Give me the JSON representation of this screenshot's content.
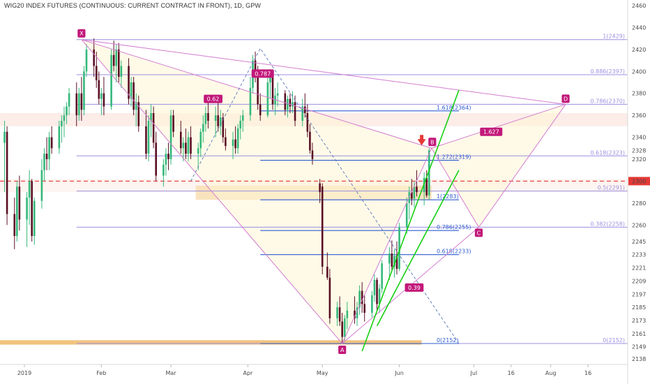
{
  "chart_data": {
    "type": "candlestick",
    "title": "WIG20 INDEX FUTURES (CONTINUOUS: CURRENT CONTRACT IN FRONT), 1D, GPW",
    "x_labels": [
      "2019",
      "Feb",
      "Mar",
      "Apr",
      "May",
      "Jun",
      "Jul",
      "16",
      "Aug",
      "16"
    ],
    "x_label_days": [
      0,
      31,
      59,
      90,
      120,
      151,
      181,
      196,
      212,
      227
    ],
    "y_ticks": [
      2138,
      2149,
      2161,
      2173,
      2185,
      2197,
      2209,
      2221,
      2233,
      2245,
      2260,
      2280,
      2300,
      2320,
      2340,
      2360,
      2380,
      2400,
      2420,
      2440,
      2460
    ],
    "ylim": [
      2131,
      2466
    ],
    "current_price": {
      "value": 2300,
      "label": "2300",
      "color": "#e53935"
    },
    "last_close": {
      "value": 2328,
      "label": "2328"
    },
    "candles": [
      {
        "d": -8,
        "o": 2335,
        "h": 2355,
        "l": 2290,
        "c": 2345
      },
      {
        "d": -7,
        "o": 2345,
        "h": 2350,
        "l": 2260,
        "c": 2270
      },
      {
        "d": -4,
        "o": 2270,
        "h": 2285,
        "l": 2238,
        "c": 2250
      },
      {
        "d": -3,
        "o": 2250,
        "h": 2300,
        "l": 2245,
        "c": 2295
      },
      {
        "d": -2,
        "o": 2295,
        "h": 2305,
        "l": 2255,
        "c": 2265
      },
      {
        "d": 1,
        "o": 2265,
        "h": 2290,
        "l": 2240,
        "c": 2285
      },
      {
        "d": 2,
        "o": 2285,
        "h": 2310,
        "l": 2260,
        "c": 2300
      },
      {
        "d": 3,
        "o": 2300,
        "h": 2302,
        "l": 2245,
        "c": 2250
      },
      {
        "d": 4,
        "o": 2250,
        "h": 2285,
        "l": 2242,
        "c": 2282
      },
      {
        "d": 7,
        "o": 2282,
        "h": 2320,
        "l": 2275,
        "c": 2310
      },
      {
        "d": 8,
        "o": 2310,
        "h": 2330,
        "l": 2300,
        "c": 2325
      },
      {
        "d": 9,
        "o": 2325,
        "h": 2340,
        "l": 2310,
        "c": 2320
      },
      {
        "d": 10,
        "o": 2320,
        "h": 2345,
        "l": 2310,
        "c": 2340
      },
      {
        "d": 11,
        "o": 2340,
        "h": 2350,
        "l": 2325,
        "c": 2330
      },
      {
        "d": 14,
        "o": 2330,
        "h": 2355,
        "l": 2325,
        "c": 2350
      },
      {
        "d": 15,
        "o": 2350,
        "h": 2360,
        "l": 2335,
        "c": 2355
      },
      {
        "d": 16,
        "o": 2355,
        "h": 2368,
        "l": 2340,
        "c": 2360
      },
      {
        "d": 17,
        "o": 2360,
        "h": 2372,
        "l": 2352,
        "c": 2368
      },
      {
        "d": 18,
        "o": 2368,
        "h": 2385,
        "l": 2360,
        "c": 2380
      },
      {
        "d": 21,
        "o": 2380,
        "h": 2390,
        "l": 2350,
        "c": 2360
      },
      {
        "d": 22,
        "o": 2360,
        "h": 2385,
        "l": 2355,
        "c": 2380
      },
      {
        "d": 23,
        "o": 2380,
        "h": 2395,
        "l": 2355,
        "c": 2365
      },
      {
        "d": 24,
        "o": 2365,
        "h": 2405,
        "l": 2360,
        "c": 2400
      },
      {
        "d": 25,
        "o": 2400,
        "h": 2425,
        "l": 2395,
        "c": 2420
      },
      {
        "d": 28,
        "o": 2420,
        "h": 2430,
        "l": 2395,
        "c": 2405
      },
      {
        "d": 29,
        "o": 2405,
        "h": 2418,
        "l": 2385,
        "c": 2392
      },
      {
        "d": 30,
        "o": 2392,
        "h": 2400,
        "l": 2370,
        "c": 2375
      },
      {
        "d": 31,
        "o": 2375,
        "h": 2385,
        "l": 2360,
        "c": 2380
      },
      {
        "d": 32,
        "o": 2380,
        "h": 2395,
        "l": 2360,
        "c": 2368
      },
      {
        "d": 35,
        "o": 2368,
        "h": 2420,
        "l": 2365,
        "c": 2415
      },
      {
        "d": 36,
        "o": 2415,
        "h": 2428,
        "l": 2400,
        "c": 2405
      },
      {
        "d": 37,
        "o": 2405,
        "h": 2425,
        "l": 2390,
        "c": 2420
      },
      {
        "d": 38,
        "o": 2420,
        "h": 2426,
        "l": 2390,
        "c": 2395
      },
      {
        "d": 39,
        "o": 2395,
        "h": 2410,
        "l": 2385,
        "c": 2405
      },
      {
        "d": 42,
        "o": 2405,
        "h": 2412,
        "l": 2370,
        "c": 2375
      },
      {
        "d": 43,
        "o": 2375,
        "h": 2395,
        "l": 2368,
        "c": 2390
      },
      {
        "d": 44,
        "o": 2390,
        "h": 2395,
        "l": 2360,
        "c": 2365
      },
      {
        "d": 45,
        "o": 2365,
        "h": 2380,
        "l": 2350,
        "c": 2372
      },
      {
        "d": 46,
        "o": 2372,
        "h": 2378,
        "l": 2345,
        "c": 2350
      },
      {
        "d": 49,
        "o": 2350,
        "h": 2365,
        "l": 2320,
        "c": 2325
      },
      {
        "d": 50,
        "o": 2325,
        "h": 2360,
        "l": 2318,
        "c": 2355
      },
      {
        "d": 51,
        "o": 2355,
        "h": 2370,
        "l": 2340,
        "c": 2362
      },
      {
        "d": 52,
        "o": 2362,
        "h": 2368,
        "l": 2330,
        "c": 2335
      },
      {
        "d": 53,
        "o": 2335,
        "h": 2345,
        "l": 2300,
        "c": 2305
      },
      {
        "d": 56,
        "o": 2305,
        "h": 2320,
        "l": 2295,
        "c": 2315
      },
      {
        "d": 57,
        "o": 2315,
        "h": 2330,
        "l": 2305,
        "c": 2325
      },
      {
        "d": 58,
        "o": 2325,
        "h": 2335,
        "l": 2310,
        "c": 2320
      },
      {
        "d": 59,
        "o": 2320,
        "h": 2365,
        "l": 2315,
        "c": 2360
      },
      {
        "d": 60,
        "o": 2360,
        "h": 2365,
        "l": 2340,
        "c": 2345
      },
      {
        "d": 63,
        "o": 2345,
        "h": 2355,
        "l": 2325,
        "c": 2330
      },
      {
        "d": 64,
        "o": 2330,
        "h": 2340,
        "l": 2318,
        "c": 2335
      },
      {
        "d": 65,
        "o": 2335,
        "h": 2348,
        "l": 2320,
        "c": 2325
      },
      {
        "d": 66,
        "o": 2325,
        "h": 2345,
        "l": 2318,
        "c": 2340
      },
      {
        "d": 67,
        "o": 2340,
        "h": 2350,
        "l": 2320,
        "c": 2325
      },
      {
        "d": 70,
        "o": 2325,
        "h": 2335,
        "l": 2310,
        "c": 2330
      },
      {
        "d": 71,
        "o": 2330,
        "h": 2348,
        "l": 2322,
        "c": 2345
      },
      {
        "d": 72,
        "o": 2345,
        "h": 2360,
        "l": 2335,
        "c": 2352
      },
      {
        "d": 73,
        "o": 2352,
        "h": 2368,
        "l": 2345,
        "c": 2362
      },
      {
        "d": 74,
        "o": 2362,
        "h": 2375,
        "l": 2348,
        "c": 2355
      },
      {
        "d": 77,
        "o": 2355,
        "h": 2368,
        "l": 2340,
        "c": 2360
      },
      {
        "d": 78,
        "o": 2360,
        "h": 2372,
        "l": 2345,
        "c": 2350
      },
      {
        "d": 79,
        "o": 2350,
        "h": 2365,
        "l": 2342,
        "c": 2358
      },
      {
        "d": 80,
        "o": 2358,
        "h": 2362,
        "l": 2335,
        "c": 2340
      },
      {
        "d": 81,
        "o": 2340,
        "h": 2348,
        "l": 2328,
        "c": 2332
      },
      {
        "d": 84,
        "o": 2332,
        "h": 2345,
        "l": 2320,
        "c": 2338
      },
      {
        "d": 85,
        "o": 2338,
        "h": 2350,
        "l": 2325,
        "c": 2330
      },
      {
        "d": 86,
        "o": 2330,
        "h": 2352,
        "l": 2325,
        "c": 2348
      },
      {
        "d": 87,
        "o": 2348,
        "h": 2360,
        "l": 2338,
        "c": 2355
      },
      {
        "d": 88,
        "o": 2355,
        "h": 2365,
        "l": 2345,
        "c": 2360
      },
      {
        "d": 91,
        "o": 2360,
        "h": 2395,
        "l": 2355,
        "c": 2385
      },
      {
        "d": 92,
        "o": 2385,
        "h": 2415,
        "l": 2380,
        "c": 2410
      },
      {
        "d": 93,
        "o": 2410,
        "h": 2418,
        "l": 2390,
        "c": 2400
      },
      {
        "d": 94,
        "o": 2400,
        "h": 2405,
        "l": 2365,
        "c": 2370
      },
      {
        "d": 95,
        "o": 2370,
        "h": 2380,
        "l": 2355,
        "c": 2360
      },
      {
        "d": 98,
        "o": 2360,
        "h": 2395,
        "l": 2358,
        "c": 2390
      },
      {
        "d": 99,
        "o": 2390,
        "h": 2402,
        "l": 2375,
        "c": 2398
      },
      {
        "d": 100,
        "o": 2398,
        "h": 2400,
        "l": 2365,
        "c": 2370
      },
      {
        "d": 101,
        "o": 2370,
        "h": 2385,
        "l": 2360,
        "c": 2378
      },
      {
        "d": 102,
        "o": 2378,
        "h": 2390,
        "l": 2368,
        "c": 2380
      },
      {
        "d": 105,
        "o": 2380,
        "h": 2383,
        "l": 2360,
        "c": 2365
      },
      {
        "d": 106,
        "o": 2365,
        "h": 2378,
        "l": 2358,
        "c": 2375
      },
      {
        "d": 107,
        "o": 2375,
        "h": 2380,
        "l": 2362,
        "c": 2368
      },
      {
        "d": 108,
        "o": 2368,
        "h": 2382,
        "l": 2362,
        "c": 2372
      },
      {
        "d": 109,
        "o": 2372,
        "h": 2378,
        "l": 2350,
        "c": 2355
      },
      {
        "d": 112,
        "o": 2355,
        "h": 2375,
        "l": 2350,
        "c": 2368
      },
      {
        "d": 113,
        "o": 2368,
        "h": 2380,
        "l": 2358,
        "c": 2362
      },
      {
        "d": 114,
        "o": 2362,
        "h": 2370,
        "l": 2340,
        "c": 2345
      },
      {
        "d": 115,
        "o": 2345,
        "h": 2352,
        "l": 2325,
        "c": 2328
      },
      {
        "d": 116,
        "o": 2328,
        "h": 2335,
        "l": 2315,
        "c": 2320
      },
      {
        "d": 119,
        "o": 2298,
        "h": 2302,
        "l": 2280,
        "c": 2290
      },
      {
        "d": 120,
        "o": 2295,
        "h": 2298,
        "l": 2215,
        "c": 2222
      },
      {
        "d": 122,
        "o": 2222,
        "h": 2235,
        "l": 2210,
        "c": 2212
      },
      {
        "d": 123,
        "o": 2212,
        "h": 2220,
        "l": 2170,
        "c": 2175
      },
      {
        "d": 126,
        "o": 2175,
        "h": 2190,
        "l": 2168,
        "c": 2185
      },
      {
        "d": 127,
        "o": 2185,
        "h": 2195,
        "l": 2168,
        "c": 2172
      },
      {
        "d": 128,
        "o": 2172,
        "h": 2180,
        "l": 2152,
        "c": 2158
      },
      {
        "d": 129,
        "o": 2158,
        "h": 2178,
        "l": 2155,
        "c": 2175
      },
      {
        "d": 130,
        "o": 2175,
        "h": 2190,
        "l": 2165,
        "c": 2182
      },
      {
        "d": 133,
        "o": 2182,
        "h": 2195,
        "l": 2170,
        "c": 2175
      },
      {
        "d": 134,
        "o": 2175,
        "h": 2190,
        "l": 2168,
        "c": 2185
      },
      {
        "d": 135,
        "o": 2185,
        "h": 2205,
        "l": 2178,
        "c": 2200
      },
      {
        "d": 136,
        "o": 2200,
        "h": 2208,
        "l": 2180,
        "c": 2188
      },
      {
        "d": 137,
        "o": 2188,
        "h": 2196,
        "l": 2172,
        "c": 2180
      },
      {
        "d": 140,
        "o": 2180,
        "h": 2200,
        "l": 2176,
        "c": 2196
      },
      {
        "d": 141,
        "o": 2196,
        "h": 2215,
        "l": 2190,
        "c": 2210
      },
      {
        "d": 142,
        "o": 2210,
        "h": 2212,
        "l": 2182,
        "c": 2188
      },
      {
        "d": 143,
        "o": 2188,
        "h": 2206,
        "l": 2180,
        "c": 2202
      },
      {
        "d": 144,
        "o": 2202,
        "h": 2228,
        "l": 2198,
        "c": 2225
      },
      {
        "d": 147,
        "o": 2225,
        "h": 2240,
        "l": 2210,
        "c": 2234
      },
      {
        "d": 148,
        "o": 2234,
        "h": 2246,
        "l": 2218,
        "c": 2222
      },
      {
        "d": 149,
        "o": 2222,
        "h": 2238,
        "l": 2212,
        "c": 2232
      },
      {
        "d": 150,
        "o": 2232,
        "h": 2245,
        "l": 2215,
        "c": 2220
      },
      {
        "d": 151,
        "o": 2220,
        "h": 2262,
        "l": 2218,
        "c": 2258
      },
      {
        "d": 154,
        "o": 2258,
        "h": 2285,
        "l": 2252,
        "c": 2280
      },
      {
        "d": 155,
        "o": 2280,
        "h": 2295,
        "l": 2265,
        "c": 2290
      },
      {
        "d": 156,
        "o": 2290,
        "h": 2302,
        "l": 2278,
        "c": 2284
      },
      {
        "d": 157,
        "o": 2284,
        "h": 2300,
        "l": 2276,
        "c": 2295
      },
      {
        "d": 158,
        "o": 2295,
        "h": 2310,
        "l": 2286,
        "c": 2290
      },
      {
        "d": 161,
        "o": 2290,
        "h": 2308,
        "l": 2278,
        "c": 2303
      },
      {
        "d": 162,
        "o": 2303,
        "h": 2310,
        "l": 2285,
        "c": 2287
      },
      {
        "d": 163,
        "o": 2287,
        "h": 2330,
        "l": 2283,
        "c": 2328
      }
    ],
    "horizontal_lines": [
      {
        "value": 2429,
        "label": "1(2429)",
        "color": "#9c8fe0"
      },
      {
        "value": 2397,
        "label": "0.886(2397)",
        "color": "#9c8fe0"
      },
      {
        "value": 2370,
        "label": "0.786(2370)",
        "color": "#9c8fe0"
      },
      {
        "value": 2323,
        "label": "0.618(2323)",
        "color": "#9c8fe0"
      },
      {
        "value": 2291,
        "label": "0.5(2291)",
        "color": "#9c8fe0"
      },
      {
        "value": 2258,
        "label": "0.382(2258)",
        "color": "#9c8fe0"
      },
      {
        "value": 2152,
        "label": "0(2152)",
        "color": "#9c8fe0"
      }
    ],
    "retracement_lines": [
      {
        "value": 2364,
        "label": "1.618(2364)",
        "color": "#2f5bd0"
      },
      {
        "value": 2319,
        "label": "1.272(2319)",
        "color": "#2f5bd0"
      },
      {
        "value": 2283,
        "label": "1(2283)",
        "color": "#2f5bd0"
      },
      {
        "value": 2255,
        "label": "0.786(2255)",
        "color": "#2f5bd0"
      },
      {
        "value": 2233,
        "label": "0.618(2233)",
        "color": "#2f5bd0"
      },
      {
        "value": 2152,
        "label": "0(2152)",
        "color": "#2f5bd0"
      }
    ],
    "pattern_points": [
      {
        "label": "X",
        "d": 23,
        "v": 2429
      },
      {
        "label": "A",
        "d": 128,
        "v": 2152
      },
      {
        "label": "B",
        "d": 164,
        "v": 2330
      },
      {
        "label": "C",
        "d": 183,
        "v": 2258
      },
      {
        "label": "D",
        "d": 218,
        "v": 2370
      }
    ],
    "ratio_labels": [
      {
        "label": "0.787",
        "d": 96,
        "v": 2398
      },
      {
        "label": "0.62",
        "d": 76,
        "v": 2375
      },
      {
        "label": "1.627",
        "d": 188,
        "v": 2345
      },
      {
        "label": "0.39",
        "d": 157,
        "v": 2203
      }
    ],
    "annotation_arrow": {
      "d": 160,
      "v": 2330,
      "color": "#e53935"
    },
    "colors": {
      "up_candle": "#34b87a",
      "down_candle": "#5a0f24",
      "pattern": "#d37dcf",
      "pattern_fill": "#fff6d6",
      "channel": "#17d012",
      "zone": "#f7d9a8",
      "zone_bottom": "#f0b86a",
      "label_badge": "#c2187a",
      "price_badge": "#e53935"
    }
  }
}
